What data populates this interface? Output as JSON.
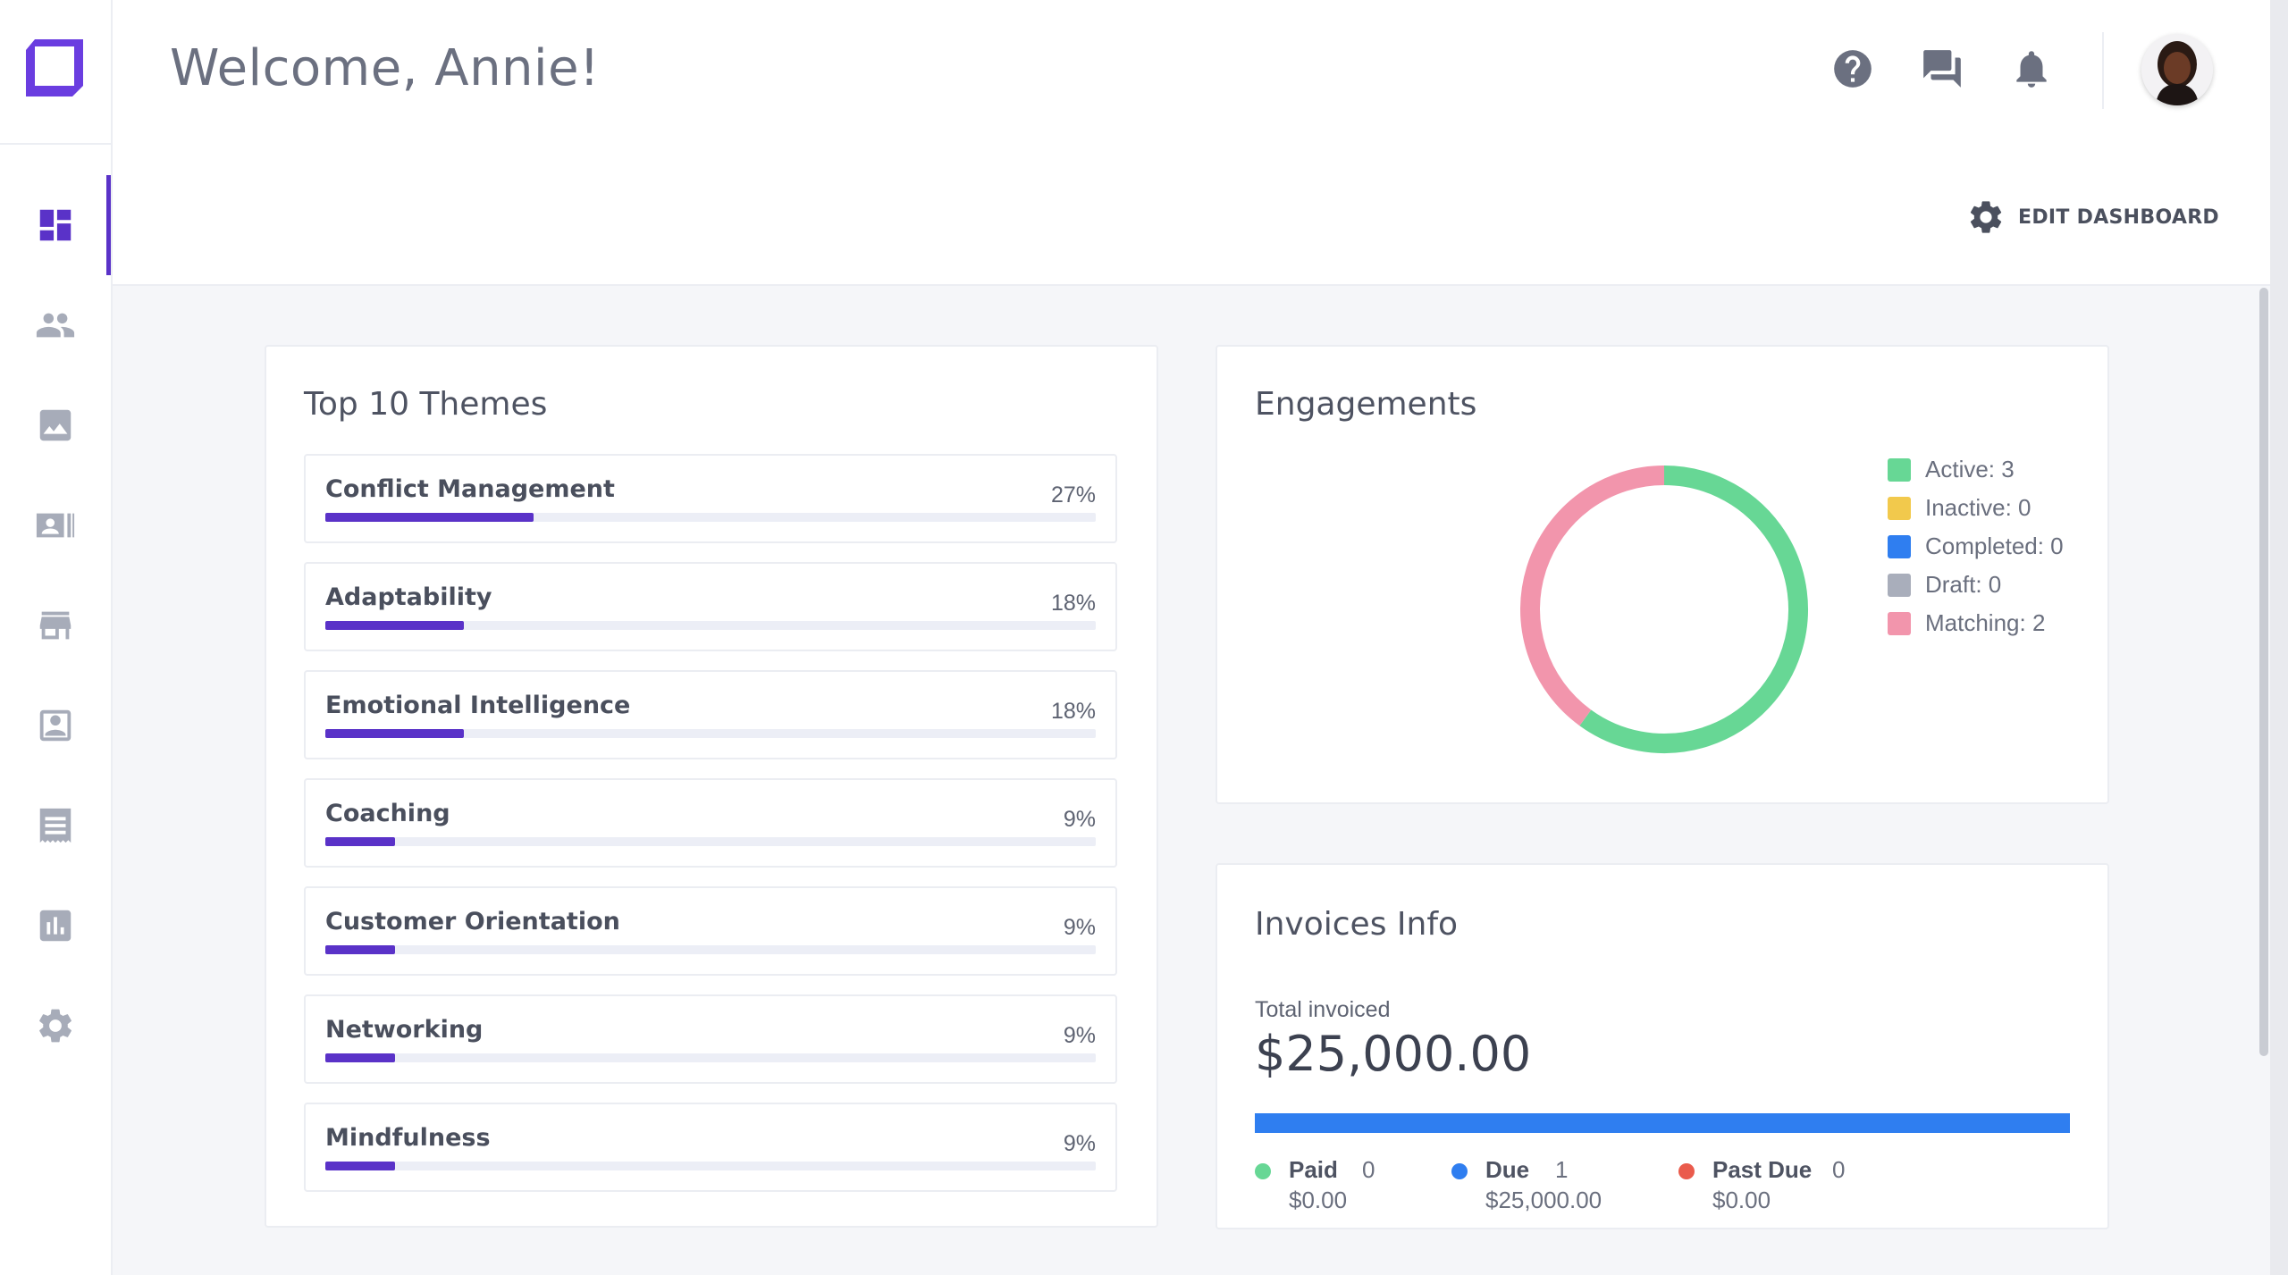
{
  "header": {
    "welcome": "Welcome, Annie!",
    "icons": [
      "help-icon",
      "chat-icon",
      "bell-icon"
    ],
    "edit_dashboard_label": "EDIT DASHBOARD"
  },
  "sidebar": {
    "items": [
      {
        "icon": "dashboard-icon",
        "active": true
      },
      {
        "icon": "people-icon",
        "active": false
      },
      {
        "icon": "portrait-icon",
        "active": false
      },
      {
        "icon": "contact-card-icon",
        "active": false
      },
      {
        "icon": "store-icon",
        "active": false
      },
      {
        "icon": "account-box-icon",
        "active": false
      },
      {
        "icon": "receipt-icon",
        "active": false
      },
      {
        "icon": "analytics-icon",
        "active": false
      },
      {
        "icon": "gear-icon",
        "active": false
      }
    ]
  },
  "themes": {
    "title": "Top 10 Themes",
    "items": [
      {
        "name": "Conflict Management",
        "pct": "27%",
        "value": 0.27
      },
      {
        "name": "Adaptability",
        "pct": "18%",
        "value": 0.18
      },
      {
        "name": "Emotional Intelligence",
        "pct": "18%",
        "value": 0.18
      },
      {
        "name": "Coaching",
        "pct": "9%",
        "value": 0.09
      },
      {
        "name": "Customer Orientation",
        "pct": "9%",
        "value": 0.09
      },
      {
        "name": "Networking",
        "pct": "9%",
        "value": 0.09
      },
      {
        "name": "Mindfulness",
        "pct": "9%",
        "value": 0.09
      }
    ]
  },
  "engagements": {
    "title": "Engagements",
    "legend": [
      {
        "label": "Active: 3",
        "color": "#67d795"
      },
      {
        "label": "Inactive: 0",
        "color": "#f2c94c"
      },
      {
        "label": "Completed: 0",
        "color": "#2f7ef0"
      },
      {
        "label": "Draft: 0",
        "color": "#a9aebb"
      },
      {
        "label": "Matching: 2",
        "color": "#f295ac"
      }
    ],
    "chart_data": {
      "type": "pie",
      "categories": [
        "Active",
        "Inactive",
        "Completed",
        "Draft",
        "Matching"
      ],
      "values": [
        3,
        0,
        0,
        0,
        2
      ],
      "colors": [
        "#67d795",
        "#f2c94c",
        "#2f7ef0",
        "#a9aebb",
        "#f295ac"
      ]
    }
  },
  "invoices": {
    "title": "Invoices Info",
    "total_label": "Total invoiced",
    "total_value": "$25,000.00",
    "statuses": [
      {
        "name": "Paid",
        "count": "0",
        "amount": "$0.00",
        "color": "#67d795"
      },
      {
        "name": "Due",
        "count": "1",
        "amount": "$25,000.00",
        "color": "#2f7ef0"
      },
      {
        "name": "Past Due",
        "count": "0",
        "amount": "$0.00",
        "color": "#ea5b4c"
      }
    ]
  },
  "colors": {
    "accent": "#5a32c8",
    "background": "#f5f6f9"
  }
}
